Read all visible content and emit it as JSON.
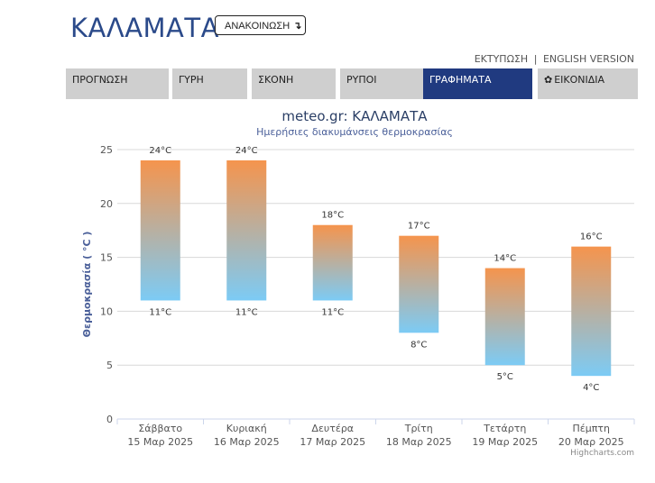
{
  "header": {
    "city": "ΚΑΛΑΜΑΤΑ",
    "announce_label": "ΑΝΑΚΟΙΝΩΣΗ",
    "announce_icon": "arrow-down-return-icon",
    "print_label": "ΕΚΤΥΠΩΣΗ",
    "separator": "|",
    "english_label": "ENGLISH VERSION"
  },
  "tabs": [
    {
      "label": "ΠΡΟΓΝΩΣΗ"
    },
    {
      "label": "ΓΥΡΗ"
    },
    {
      "label": "ΣΚΟΝΗ"
    },
    {
      "label": "ΡΥΠΟΙ"
    },
    {
      "label": "ΓΡΑΦΗΜΑΤΑ",
      "active": true
    },
    {
      "label": "ΕΙΚΟΝΙΔΙΑ",
      "icon": "gear-icon"
    }
  ],
  "chart_data": {
    "type": "bar",
    "title": "meteo.gr: ΚΑΛΑΜΑΤΑ",
    "subtitle": "Ημερήσιες διακυμάνσεις θερμοκρασίας",
    "ylabel": "Θερμοκρασία ( °C )",
    "ylim": [
      0,
      25
    ],
    "yticks": [
      0,
      5,
      10,
      15,
      20,
      25
    ],
    "categories": [
      [
        "Σάββατο",
        "15 Μαρ 2025"
      ],
      [
        "Κυριακή",
        "16 Μαρ 2025"
      ],
      [
        "Δευτέρα",
        "17 Μαρ 2025"
      ],
      [
        "Τρίτη",
        "18 Μαρ 2025"
      ],
      [
        "Τετάρτη",
        "19 Μαρ 2025"
      ],
      [
        "Πέμπτη",
        "20 Μαρ 2025"
      ]
    ],
    "low": [
      11,
      11,
      11,
      8,
      5,
      4
    ],
    "high": [
      24,
      24,
      18,
      17,
      14,
      16
    ],
    "unit": "°C",
    "colors": {
      "top": "#f5944d",
      "bottom": "#7ccbf5"
    },
    "credits": "Highcharts.com"
  }
}
